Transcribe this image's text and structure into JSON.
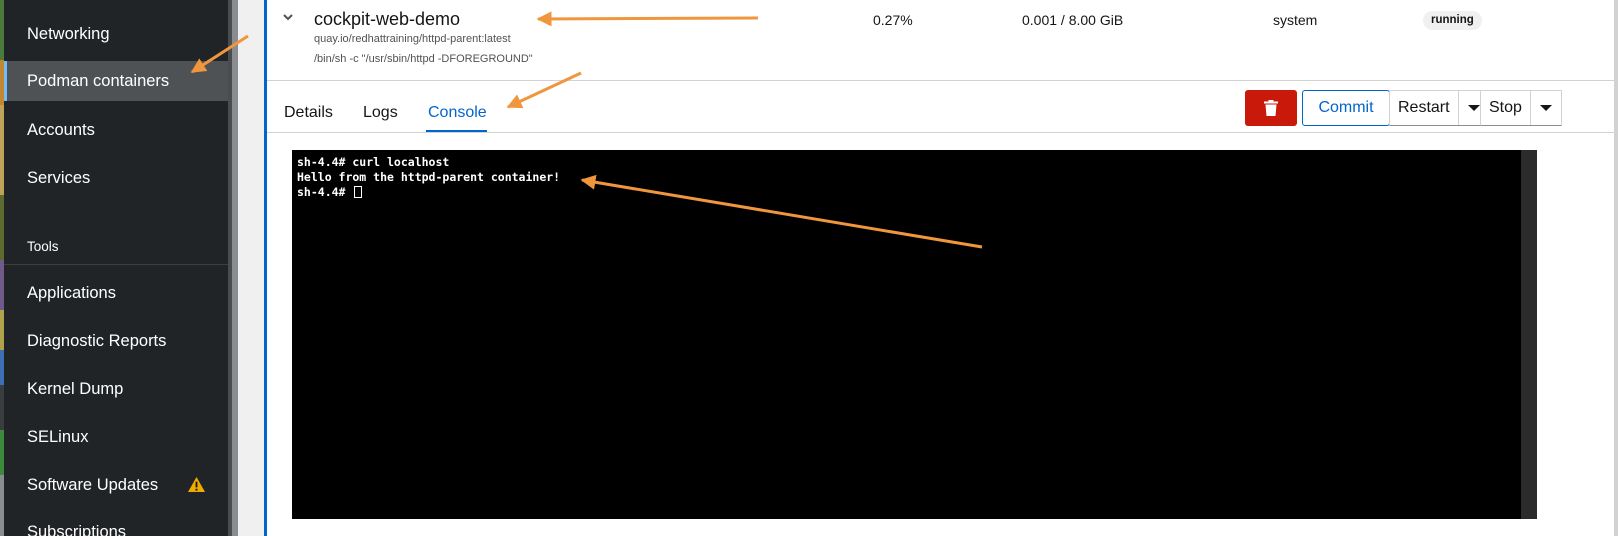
{
  "sidebar": {
    "items": [
      {
        "label": "Networking"
      },
      {
        "label": "Podman containers",
        "active": true
      },
      {
        "label": "Accounts"
      },
      {
        "label": "Services"
      }
    ],
    "section_label": "Tools",
    "tool_items": [
      {
        "label": "Applications"
      },
      {
        "label": "Diagnostic Reports"
      },
      {
        "label": "Kernel Dump"
      },
      {
        "label": "SELinux"
      },
      {
        "label": "Software Updates",
        "icon": "warning-icon"
      },
      {
        "label": "Subscriptions"
      }
    ]
  },
  "container": {
    "name": "cockpit-web-demo",
    "image": "quay.io/redhattraining/httpd-parent:latest",
    "command": "/bin/sh -c \"/usr/sbin/httpd -DFOREGROUND\"",
    "cpu": "0.27%",
    "memory": "0.001 / 8.00 GiB",
    "owner": "system",
    "state": "running"
  },
  "tabs": [
    {
      "label": "Details"
    },
    {
      "label": "Logs"
    },
    {
      "label": "Console",
      "active": true
    }
  ],
  "actions": {
    "delete_icon": "trash-icon",
    "commit": "Commit",
    "restart": "Restart",
    "stop": "Stop"
  },
  "terminal": {
    "lines": [
      "sh-4.4# curl localhost",
      "Hello from the httpd-parent container!",
      "sh-4.4# "
    ]
  },
  "colors": {
    "accent": "#0066cc",
    "danger": "#c9190b",
    "annotation": "#f0963c",
    "warning": "#f0ab00"
  }
}
